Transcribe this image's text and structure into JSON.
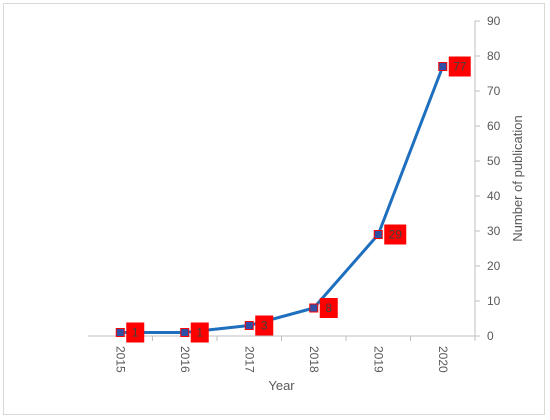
{
  "chart_data": {
    "type": "line",
    "categories": [
      "2015",
      "2016",
      "2017",
      "2018",
      "2019",
      "2020"
    ],
    "series": [
      {
        "values": [
          1,
          1,
          3,
          8,
          29,
          77
        ]
      }
    ],
    "data_labels": [
      "1",
      "1",
      "3",
      "8",
      "29",
      "77"
    ],
    "title": "",
    "xlabel": "Year",
    "ylabel": "Number of publication",
    "ylim": [
      0,
      90
    ],
    "yticks": [
      0,
      10,
      20,
      30,
      40,
      50,
      60,
      70,
      80,
      90
    ],
    "y_axis_side": "right",
    "grid": false,
    "legend": "none",
    "colors": {
      "line": "#1f6fbf",
      "marker": "#2e4fa3",
      "label_box": "#ff0000",
      "axis": "#bfbfbf",
      "text": "#595959"
    }
  }
}
